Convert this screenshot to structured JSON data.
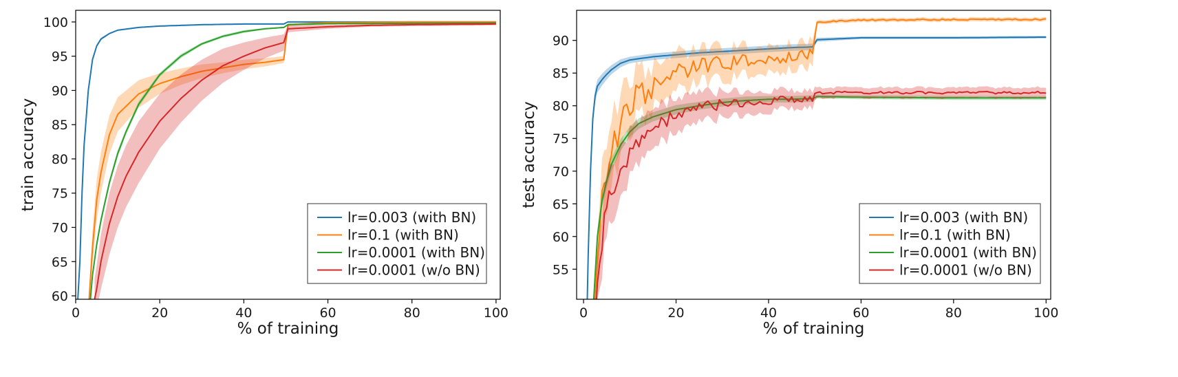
{
  "chart_data": [
    {
      "type": "line",
      "xlabel": "% of training",
      "ylabel": "train accuracy",
      "xlim": [
        0,
        101
      ],
      "ylim": [
        59.5,
        101.7
      ],
      "xticks": [
        0,
        20,
        40,
        60,
        80,
        100
      ],
      "yticks": [
        60,
        65,
        70,
        75,
        80,
        85,
        90,
        95,
        100
      ],
      "legend_position": "bottom-right",
      "shaded_band": "variability across runs",
      "series": [
        {
          "name": "lr=0.003 (with BN)",
          "color": "#1f77b4",
          "x": [
            0.5,
            1,
            1.5,
            2,
            3,
            4,
            5,
            6,
            8,
            10,
            15,
            20,
            30,
            40,
            49.5,
            50.5,
            60,
            80,
            100
          ],
          "y": [
            59.5,
            65,
            75,
            82,
            90,
            94.5,
            96.5,
            97.5,
            98.3,
            98.8,
            99.2,
            99.4,
            99.6,
            99.7,
            99.7,
            100,
            100,
            100,
            100
          ],
          "band": [
            0.1,
            0.2,
            0.3,
            0.3,
            0.3,
            0.2,
            0.2,
            0.2,
            0.1,
            0.1,
            0.1,
            0.1,
            0.1,
            0.1,
            0.1,
            0.05,
            0.05,
            0.05,
            0.05
          ]
        },
        {
          "name": "lr=0.1 (with BN)",
          "color": "#ff7f0e",
          "x": [
            3.2,
            4,
            5,
            6,
            8,
            10,
            15,
            20,
            25,
            30,
            35,
            40,
            45,
            49.5,
            50.5,
            60,
            80,
            100
          ],
          "y": [
            59.5,
            67,
            74,
            78,
            83.5,
            86.5,
            89.5,
            91,
            92,
            92.8,
            93.3,
            93.8,
            94.1,
            94.5,
            99.6,
            99.9,
            100,
            100
          ],
          "band": [
            1.5,
            2.5,
            3,
            3,
            2.8,
            2.5,
            2,
            1.5,
            1.2,
            1,
            0.8,
            0.7,
            0.6,
            0.5,
            0.2,
            0.1,
            0.05,
            0.05
          ]
        },
        {
          "name": "lr=0.0001 (with BN)",
          "color": "#2ca02c",
          "x": [
            3.5,
            4,
            5,
            6,
            8,
            10,
            12,
            15,
            20,
            25,
            30,
            35,
            40,
            45,
            49.5,
            50.5,
            60,
            80,
            100
          ],
          "y": [
            59.5,
            63,
            67.5,
            71,
            76.5,
            80.8,
            84,
            88,
            92.3,
            95,
            96.8,
            97.9,
            98.6,
            99,
            99.2,
            99.6,
            99.75,
            99.8,
            99.85
          ],
          "band": [
            0.5,
            0.6,
            0.6,
            0.6,
            0.5,
            0.5,
            0.4,
            0.4,
            0.3,
            0.3,
            0.2,
            0.2,
            0.2,
            0.1,
            0.1,
            0.1,
            0.05,
            0.05,
            0.05
          ]
        },
        {
          "name": "lr=0.0001 (w/o BN)",
          "color": "#d62728",
          "x": [
            4.5,
            5,
            6,
            8,
            10,
            12,
            15,
            20,
            25,
            30,
            35,
            40,
            45,
            49.5,
            50.5,
            60,
            70,
            80,
            100
          ],
          "y": [
            59.5,
            61,
            65,
            70.5,
            74.5,
            77.5,
            81,
            85.5,
            88.8,
            91.5,
            93.6,
            95,
            96.2,
            97,
            99,
            99.3,
            99.5,
            99.6,
            99.7
          ],
          "band": [
            3,
            3.5,
            4,
            4.5,
            4.5,
            4.5,
            4.5,
            4,
            3.5,
            3,
            2.5,
            2,
            1.5,
            1.2,
            0.5,
            0.3,
            0.2,
            0.2,
            0.2
          ]
        }
      ]
    },
    {
      "type": "line",
      "xlabel": "% of training",
      "ylabel": "test accuracy",
      "xlim": [
        -1.5,
        101
      ],
      "ylim": [
        50.4,
        94.6
      ],
      "xticks": [
        0,
        20,
        40,
        60,
        80,
        100
      ],
      "yticks": [
        55,
        60,
        65,
        70,
        75,
        80,
        85,
        90
      ],
      "legend_position": "bottom-right",
      "shaded_band": "variability across runs",
      "series": [
        {
          "name": "lr=0.003 (with BN)",
          "color": "#1f77b4",
          "x": [
            0.8,
            1,
            1.5,
            2,
            2.5,
            3,
            4,
            5,
            6,
            8,
            10,
            15,
            20,
            25,
            30,
            35,
            40,
            45,
            49.5,
            50.5,
            60,
            80,
            100
          ],
          "y": [
            50.4,
            57,
            70,
            78,
            81.5,
            83,
            84,
            84.8,
            85.5,
            86.5,
            87,
            87.5,
            87.8,
            88.1,
            88.3,
            88.5,
            88.7,
            88.9,
            89,
            90.1,
            90.4,
            90.4,
            90.5
          ],
          "band": [
            0.5,
            1.5,
            1.5,
            1.2,
            1,
            1,
            0.9,
            0.8,
            0.7,
            0.6,
            0.5,
            0.5,
            0.5,
            0.5,
            0.5,
            0.5,
            0.5,
            0.5,
            0.5,
            0.3,
            0.2,
            0.2,
            0.2
          ]
        },
        {
          "name": "lr=0.1 (with BN)",
          "color": "#ff7f0e",
          "x": [
            2.5,
            3,
            4,
            5,
            6,
            8,
            10,
            12,
            14,
            16,
            18,
            20,
            25,
            30,
            35,
            40,
            45,
            49.5,
            50.5,
            60,
            80,
            100
          ],
          "y": [
            50.4,
            57,
            65,
            70,
            73,
            77.5,
            80,
            82,
            81,
            84,
            84.5,
            85,
            86,
            86.5,
            87,
            87.2,
            87.5,
            88,
            92.8,
            93.1,
            93.2,
            93.2
          ],
          "jitter": [
            0,
            1,
            2,
            2.5,
            2.5,
            2.5,
            2.2,
            2,
            1.8,
            1.6,
            1.5,
            1.4,
            1.3,
            1.2,
            1.1,
            1,
            1,
            1,
            0.1,
            0.1,
            0.1,
            0.1
          ],
          "band": [
            2,
            4,
            5,
            5,
            5,
            4.5,
            4,
            3.5,
            3.5,
            3,
            3,
            3,
            2.5,
            2.5,
            2.2,
            2,
            2,
            2,
            0.3,
            0.3,
            0.3,
            0.3
          ]
        },
        {
          "name": "lr=0.0001 (with BN)",
          "color": "#2ca02c",
          "x": [
            2.2,
            3,
            4,
            5,
            6,
            8,
            10,
            12,
            15,
            20,
            25,
            30,
            35,
            40,
            45,
            49.5,
            50.5,
            60,
            80,
            100
          ],
          "y": [
            50.4,
            60,
            65.5,
            68.5,
            71,
            74,
            76,
            77.3,
            78.3,
            79.4,
            80,
            80.5,
            80.8,
            81,
            81,
            81.1,
            81.4,
            81.3,
            81.2,
            81.2
          ],
          "band": [
            0.5,
            1,
            1,
            1,
            1,
            0.9,
            0.8,
            0.8,
            0.7,
            0.7,
            0.6,
            0.6,
            0.6,
            0.5,
            0.5,
            0.5,
            0.3,
            0.3,
            0.3,
            0.3
          ]
        },
        {
          "name": "lr=0.0001 (w/o BN)",
          "color": "#d62728",
          "x": [
            2.8,
            3,
            4,
            5,
            6,
            8,
            10,
            12,
            15,
            18,
            20,
            25,
            30,
            35,
            40,
            45,
            49.5,
            50.5,
            60,
            80,
            100
          ],
          "y": [
            50.4,
            54,
            60,
            64,
            66.5,
            70,
            72.5,
            74.5,
            76.5,
            77.8,
            78.5,
            79.6,
            80.3,
            80.6,
            80.8,
            81,
            81.1,
            82,
            82,
            82,
            82
          ],
          "jitter": [
            0,
            1.5,
            2,
            2,
            2,
            1.8,
            1.5,
            1.3,
            1.2,
            1.1,
            1,
            0.9,
            0.8,
            0.8,
            0.7,
            0.7,
            0.7,
            0.2,
            0.2,
            0.2,
            0.2
          ],
          "band": [
            2,
            3.5,
            4.5,
            4.5,
            4.5,
            4,
            3.5,
            3.2,
            3,
            2.8,
            2.6,
            2.3,
            2,
            1.8,
            1.6,
            1.4,
            1.3,
            0.8,
            0.8,
            0.8,
            0.8
          ]
        }
      ]
    }
  ]
}
